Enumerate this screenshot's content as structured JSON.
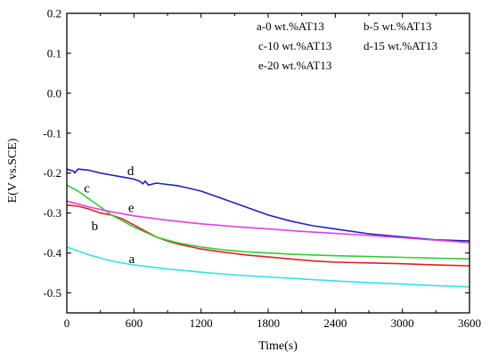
{
  "chart_data": {
    "type": "line",
    "xlabel": "Time(s)",
    "ylabel": "E(V vs.SCE)",
    "xlim": [
      0,
      3600
    ],
    "ylim": [
      -0.55,
      0.2
    ],
    "x_ticks": [
      "0",
      "600",
      "1200",
      "1800",
      "2400",
      "3000",
      "3600"
    ],
    "y_ticks": [
      "-0.5",
      "-0.4",
      "-0.3",
      "-0.2",
      "-0.1",
      "0.0",
      "0.1",
      "0.2"
    ],
    "grid": false,
    "legend_entries": [
      "a-0 wt.%AT13",
      "b-5 wt.%AT13",
      "c-10 wt.%AT13",
      "d-15 wt.%AT13",
      "e-20 wt.%AT13"
    ],
    "series": [
      {
        "name": "a",
        "color": "#33e0f0",
        "x": [
          0,
          200,
          400,
          600,
          900,
          1200,
          1500,
          1800,
          2100,
          2400,
          2700,
          3000,
          3300,
          3600
        ],
        "y": [
          -0.385,
          -0.405,
          -0.42,
          -0.43,
          -0.44,
          -0.448,
          -0.455,
          -0.46,
          -0.465,
          -0.47,
          -0.474,
          -0.478,
          -0.482,
          -0.485
        ]
      },
      {
        "name": "b",
        "color": "#e02020",
        "x": [
          0,
          100,
          200,
          300,
          400,
          500,
          600,
          700,
          800,
          900,
          1000,
          1200,
          1400,
          1600,
          1800,
          2000,
          2200,
          2400,
          2700,
          3000,
          3300,
          3600
        ],
        "y": [
          -0.28,
          -0.283,
          -0.29,
          -0.3,
          -0.305,
          -0.315,
          -0.33,
          -0.345,
          -0.36,
          -0.37,
          -0.378,
          -0.39,
          -0.398,
          -0.405,
          -0.41,
          -0.415,
          -0.42,
          -0.423,
          -0.425,
          -0.427,
          -0.43,
          -0.432
        ]
      },
      {
        "name": "c",
        "color": "#33cc33",
        "x": [
          0,
          100,
          200,
          300,
          400,
          500,
          600,
          700,
          800,
          900,
          1000,
          1200,
          1400,
          1600,
          1800,
          2000,
          2200,
          2400,
          2700,
          3000,
          3300,
          3600
        ],
        "y": [
          -0.23,
          -0.245,
          -0.265,
          -0.285,
          -0.305,
          -0.32,
          -0.335,
          -0.348,
          -0.36,
          -0.368,
          -0.375,
          -0.385,
          -0.392,
          -0.397,
          -0.4,
          -0.403,
          -0.405,
          -0.407,
          -0.409,
          -0.411,
          -0.413,
          -0.415
        ]
      },
      {
        "name": "d",
        "color": "#2020c0",
        "x": [
          0,
          60,
          70,
          100,
          200,
          300,
          400,
          500,
          600,
          650,
          680,
          700,
          730,
          800,
          1000,
          1200,
          1400,
          1600,
          1800,
          2000,
          2200,
          2400,
          2700,
          3000,
          3300,
          3600
        ],
        "y": [
          -0.19,
          -0.195,
          -0.2,
          -0.19,
          -0.193,
          -0.2,
          -0.205,
          -0.21,
          -0.215,
          -0.22,
          -0.227,
          -0.22,
          -0.23,
          -0.225,
          -0.232,
          -0.245,
          -0.265,
          -0.285,
          -0.305,
          -0.32,
          -0.332,
          -0.34,
          -0.352,
          -0.36,
          -0.367,
          -0.37
        ]
      },
      {
        "name": "e",
        "color": "#e040e0",
        "x": [
          0,
          200,
          400,
          600,
          900,
          1200,
          1500,
          1800,
          2100,
          2400,
          2700,
          3000,
          3300,
          3600
        ],
        "y": [
          -0.27,
          -0.285,
          -0.297,
          -0.307,
          -0.318,
          -0.327,
          -0.334,
          -0.34,
          -0.346,
          -0.351,
          -0.356,
          -0.362,
          -0.368,
          -0.374
        ]
      }
    ],
    "curve_labels": [
      {
        "text": "a",
        "x": 580,
        "y": -0.425
      },
      {
        "text": "b",
        "x": 250,
        "y": -0.343
      },
      {
        "text": "c",
        "x": 180,
        "y": -0.248
      },
      {
        "text": "d",
        "x": 570,
        "y": -0.205
      },
      {
        "text": "e",
        "x": 575,
        "y": -0.297
      }
    ]
  }
}
